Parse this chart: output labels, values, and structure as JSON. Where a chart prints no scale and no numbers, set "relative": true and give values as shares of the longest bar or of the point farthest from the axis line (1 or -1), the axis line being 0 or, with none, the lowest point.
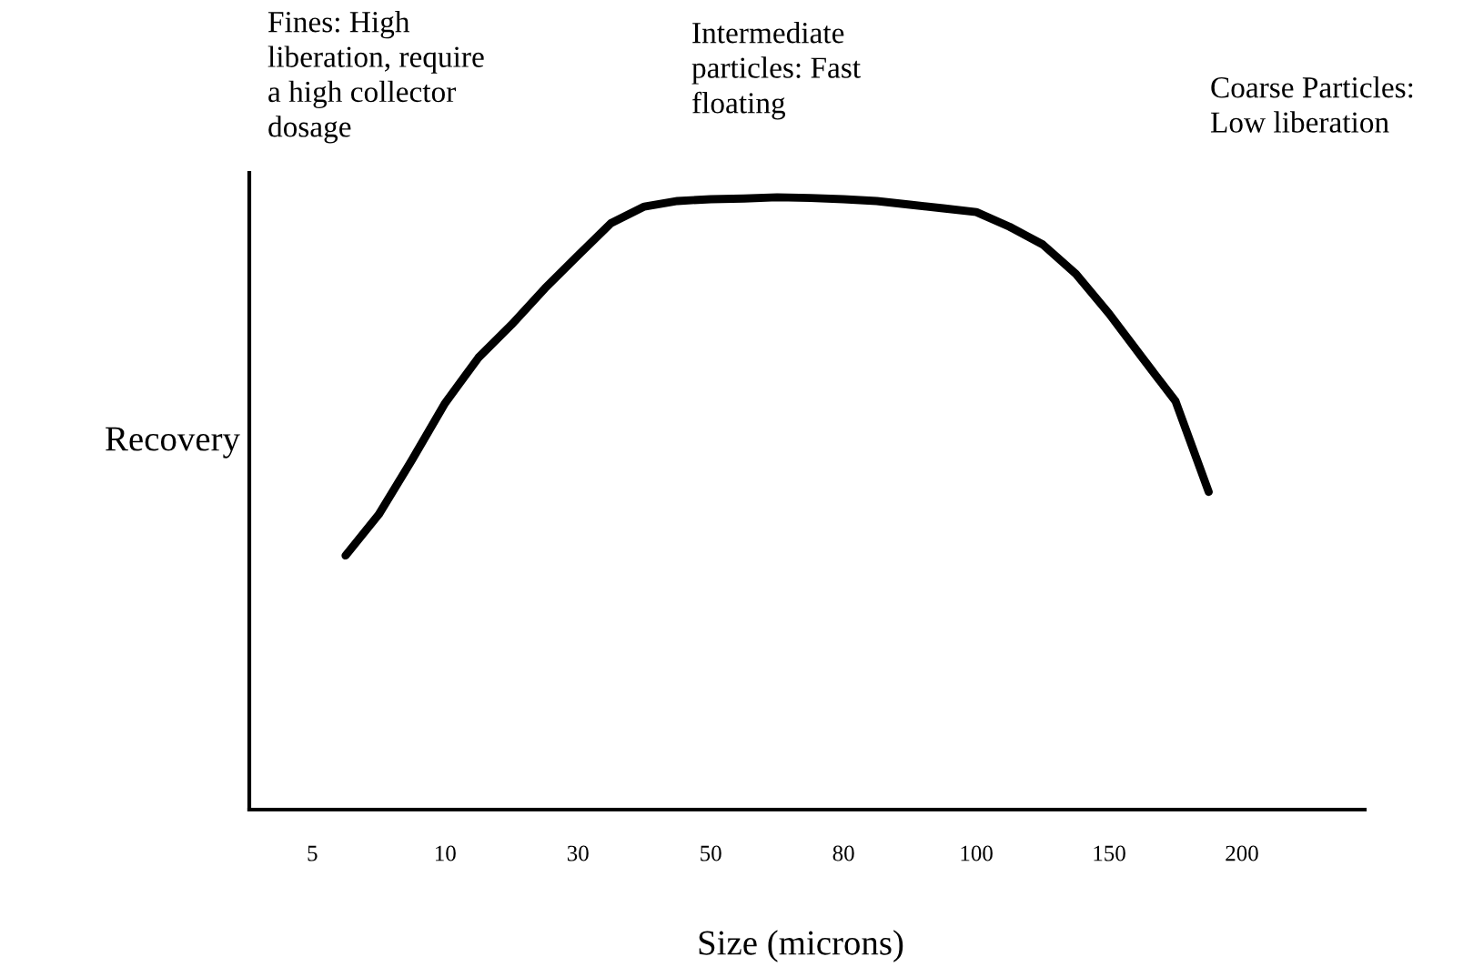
{
  "chart_data": {
    "type": "line",
    "relative": true,
    "xlabel": "Size (microns)",
    "ylabel": "Recovery",
    "annotations": [
      "Fines: High\nliberation, require\na high collector\ndosage",
      "Intermediate\nparticles: Fast\nfloating",
      "Coarse Particles:\nLow liberation"
    ],
    "categories": [
      "5",
      null,
      null,
      null,
      "10",
      null,
      null,
      null,
      "30",
      null,
      null,
      null,
      "50",
      null,
      null,
      null,
      "80",
      null,
      null,
      null,
      "100",
      null,
      null,
      null,
      "150",
      null,
      null,
      null,
      "200"
    ],
    "grid": false,
    "legend": false,
    "marker": "none",
    "line_style": "solid",
    "series": [
      {
        "color": "#000000",
        "values": [
          null,
          0.415,
          0.482,
          0.571,
          0.664,
          0.738,
          0.792,
          0.851,
          0.905,
          0.958,
          0.985,
          0.994,
          0.997,
          0.998,
          1.0,
          0.999,
          0.997,
          0.994,
          0.988,
          0.982,
          0.976,
          0.952,
          0.923,
          0.875,
          0.81,
          0.738,
          0.667,
          0.519,
          null
        ]
      }
    ]
  }
}
